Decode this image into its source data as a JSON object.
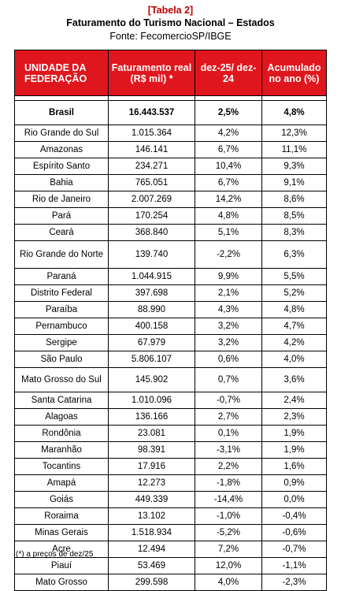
{
  "header": {
    "tag": "[Tabela 2]",
    "title": "Faturamento do Turismo Nacional – Estados",
    "source": "Fonte: FecomercioSP/IBGE"
  },
  "table": {
    "columns": [
      "UNIDADE DA FEDERAÇÃO",
      "Faturamento real (R$ mil) *",
      "dez-25/ dez-24",
      "Acumulado no ano (%)"
    ],
    "total": {
      "state": "Brasil",
      "revenue": "16.443.537",
      "yoy": "2,5%",
      "ytd": "4,8%"
    },
    "rows": [
      {
        "state": "Rio Grande do Sul",
        "revenue": "1.015.364",
        "yoy": "4,2%",
        "ytd": "12,3%"
      },
      {
        "state": "Amazonas",
        "revenue": "146.141",
        "yoy": "6,7%",
        "ytd": "11,1%"
      },
      {
        "state": "Espírito Santo",
        "revenue": "234.271",
        "yoy": "10,4%",
        "ytd": "9,3%"
      },
      {
        "state": "Bahia",
        "revenue": "765.051",
        "yoy": "6,7%",
        "ytd": "9,1%"
      },
      {
        "state": "Rio de Janeiro",
        "revenue": "2.007.269",
        "yoy": "14,2%",
        "ytd": "8,6%"
      },
      {
        "state": "Pará",
        "revenue": "170.254",
        "yoy": "4,8%",
        "ytd": "8,5%"
      },
      {
        "state": "Ceará",
        "revenue": "368.840",
        "yoy": "5,1%",
        "ytd": "8,3%"
      },
      {
        "state": "Rio Grande do Norte",
        "revenue": "139.740",
        "yoy": "-2,2%",
        "ytd": "6,3%"
      },
      {
        "state": "Paraná",
        "revenue": "1.044.915",
        "yoy": "9,9%",
        "ytd": "5,5%"
      },
      {
        "state": "Distrito Federal",
        "revenue": "397.698",
        "yoy": "2,1%",
        "ytd": "5,2%"
      },
      {
        "state": "Paraíba",
        "revenue": "88.990",
        "yoy": "4,3%",
        "ytd": "4,8%"
      },
      {
        "state": "Pernambuco",
        "revenue": "400.158",
        "yoy": "3,2%",
        "ytd": "4,7%"
      },
      {
        "state": "Sergipe",
        "revenue": "67.979",
        "yoy": "3,2%",
        "ytd": "4,2%"
      },
      {
        "state": "São Paulo",
        "revenue": "5.806.107",
        "yoy": "0,6%",
        "ytd": "4,0%"
      },
      {
        "state": "Mato Grosso do Sul",
        "revenue": "145.902",
        "yoy": "0,7%",
        "ytd": "3,6%"
      },
      {
        "state": "Santa Catarina",
        "revenue": "1.010.096",
        "yoy": "-0,7%",
        "ytd": "2,4%"
      },
      {
        "state": "Alagoas",
        "revenue": "136.166",
        "yoy": "2,7%",
        "ytd": "2,3%"
      },
      {
        "state": "Rondônia",
        "revenue": "23.081",
        "yoy": "0,1%",
        "ytd": "1,9%"
      },
      {
        "state": "Maranhão",
        "revenue": "98.391",
        "yoy": "-3,1%",
        "ytd": "1,9%"
      },
      {
        "state": "Tocantins",
        "revenue": "17.916",
        "yoy": "2,2%",
        "ytd": "1,6%"
      },
      {
        "state": "Amapá",
        "revenue": "12.273",
        "yoy": "-1,8%",
        "ytd": "0,9%"
      },
      {
        "state": "Goiás",
        "revenue": "449.339",
        "yoy": "-14,4%",
        "ytd": "0,0%"
      },
      {
        "state": "Roraima",
        "revenue": "13.102",
        "yoy": "-1,0%",
        "ytd": "-0,4%"
      },
      {
        "state": "Minas Gerais",
        "revenue": "1.518.934",
        "yoy": "-5,2%",
        "ytd": "-0,6%"
      },
      {
        "state": "Acre",
        "revenue": "12.494",
        "yoy": "7,2%",
        "ytd": "-0,7%"
      },
      {
        "state": "Piauí",
        "revenue": "53.469",
        "yoy": "12,0%",
        "ytd": "-1,1%"
      },
      {
        "state": "Mato Grosso",
        "revenue": "299.598",
        "yoy": "4,0%",
        "ytd": "-2,3%"
      }
    ]
  },
  "footnote": "(*) a preços de dez/25",
  "colors": {
    "tag": "#c00000",
    "header_bg": "#e0161e",
    "header_text": "#ffffff"
  }
}
